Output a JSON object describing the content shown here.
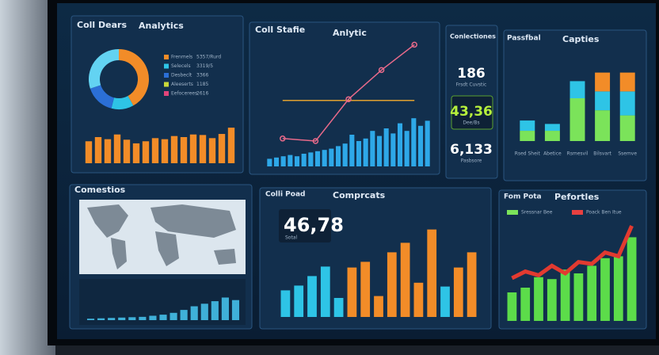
{
  "panels": {
    "analytics": {
      "title": "Coll Dears",
      "subtitle": "Analytics",
      "donut": {
        "values": [
          42,
          12,
          16,
          30
        ],
        "colors": [
          "#f28c28",
          "#2ec4e6",
          "#2b6fd6",
          "#63d3f2"
        ]
      },
      "legend": [
        {
          "label": "Frenmels",
          "value": "5357/Rurd",
          "color": "#f28c28"
        },
        {
          "label": "Selecels",
          "value": "3319/5",
          "color": "#2ec4e6"
        },
        {
          "label": "Desbeclt",
          "value": "3366",
          "color": "#2b6fd6"
        },
        {
          "label": "Aleeserts",
          "value": "1185",
          "color": "#c9d93a"
        },
        {
          "label": "Eefocerees",
          "value": "2616",
          "color": "#e2447a"
        }
      ],
      "bars": {
        "values": [
          42,
          50,
          46,
          55,
          45,
          38,
          42,
          48,
          46,
          52,
          50,
          55,
          54,
          48,
          56,
          68
        ],
        "ylim": [
          0,
          100
        ],
        "color": "#f28c28"
      }
    },
    "trend": {
      "title": "Coll Stafie",
      "subtitle": "Anlytic",
      "bars": {
        "values": [
          6,
          7,
          8,
          9,
          8,
          10,
          11,
          12,
          13,
          14,
          16,
          18,
          25,
          20,
          22,
          28,
          24,
          30,
          26,
          34,
          28,
          38,
          32,
          36
        ],
        "ylim": [
          0,
          100
        ],
        "color": "#2ea8e8"
      },
      "line": {
        "values": [
          22,
          20,
          53,
          76,
          96
        ],
        "ylim": [
          0,
          100
        ],
        "color": "#e86a8a"
      },
      "ref": {
        "values": [
          52,
          52,
          52,
          52,
          52
        ],
        "ylim": [
          0,
          100
        ],
        "color": "#e0a030"
      }
    },
    "kpis": {
      "title": "Conlectiones",
      "items": [
        {
          "value": "186",
          "label": "Frsdt Cuvstic",
          "color": "#ffffff"
        },
        {
          "value": "43,36",
          "label": "Dee/Bs",
          "color": "#b6f03c"
        },
        {
          "value": "6,133",
          "label": "Pasbsore",
          "color": "#ffffff"
        }
      ]
    },
    "stacked": {
      "title": "Passfbal",
      "subtitle": "Capties",
      "ylim": [
        0,
        100
      ],
      "series": [
        {
          "color": "#7be35a",
          "values": [
            12,
            12,
            50,
            36,
            30
          ]
        },
        {
          "color": "#2ec4e6",
          "values": [
            12,
            8,
            20,
            22,
            28
          ]
        },
        {
          "color": "#f28c28",
          "values": [
            0,
            0,
            0,
            22,
            22
          ]
        }
      ],
      "categories": [
        "Rsed Sheit",
        "Abetice",
        "Rsmesvil",
        "Bilsvart",
        "Ssemve"
      ]
    },
    "map": {
      "title": "Comestios",
      "bars": {
        "values": [
          4,
          5,
          6,
          7,
          8,
          9,
          12,
          15,
          20,
          28,
          38,
          45,
          52,
          62,
          55
        ],
        "ylim": [
          0,
          100
        ],
        "color": "#3fb0d8"
      }
    },
    "compare": {
      "title": "Colli Poad",
      "subtitle": "Comprcats",
      "kpi": "46,78",
      "kpi_label": "Sotal",
      "bars": {
        "values": [
          28,
          33,
          43,
          53,
          20,
          52,
          58,
          22,
          68,
          78,
          36,
          92,
          32,
          52,
          68
        ],
        "ylim": [
          0,
          100
        ],
        "colors": [
          "#2ec4e6",
          "#2ec4e6",
          "#2ec4e6",
          "#2ec4e6",
          "#2ec4e6",
          "#f28c28",
          "#f28c28",
          "#f28c28",
          "#f28c28",
          "#f28c28",
          "#f28c28",
          "#f28c28",
          "#2ec4e6",
          "#f28c28",
          "#f28c28"
        ]
      }
    },
    "perf": {
      "title": "Fom Pota",
      "subtitle": "Pefortles",
      "legend": [
        {
          "label": "Sressnar Bee",
          "color": "#7be35a"
        },
        {
          "label": "Poack Ben Itue",
          "color": "#e84040"
        }
      ],
      "bars": {
        "values": [
          30,
          35,
          46,
          44,
          54,
          50,
          58,
          66,
          68,
          88
        ],
        "ylim": [
          0,
          100
        ],
        "color": "#5cdc4a"
      },
      "line": {
        "values": [
          45,
          52,
          48,
          58,
          50,
          62,
          60,
          72,
          68,
          100
        ],
        "ylim": [
          0,
          100
        ],
        "color": "#e23a30"
      }
    }
  }
}
